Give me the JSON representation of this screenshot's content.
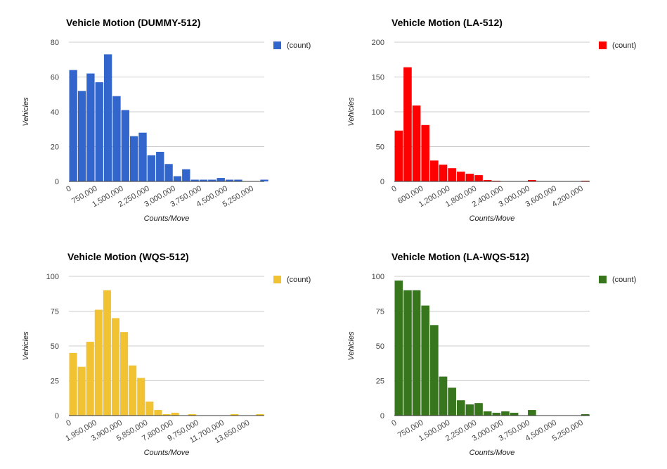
{
  "chart_data": [
    {
      "type": "bar",
      "title": "Vehicle Motion (DUMMY-512)",
      "xlabel": "Counts/Move",
      "ylabel": "Vehicles",
      "color": "#3366cc",
      "legend": {
        "position": "right",
        "entries": [
          "(count)"
        ]
      },
      "grid": true,
      "bin_width": 250000,
      "xlim": [
        0,
        5625000
      ],
      "ylim": [
        0,
        80
      ],
      "yticks": [
        0,
        20,
        40,
        60,
        80
      ],
      "xticks": [
        0,
        750000,
        1500000,
        2250000,
        3000000,
        3750000,
        4500000,
        5250000
      ],
      "xtick_labels": [
        "0",
        "750,000",
        "1,500,000",
        "2,250,000",
        "3,000,000",
        "3,750,000",
        "4,500,000",
        "5,250,000"
      ],
      "series": [
        {
          "values": [
            64,
            52,
            62,
            57,
            73,
            49,
            41,
            26,
            28,
            15,
            17,
            10,
            3,
            7,
            1,
            1,
            1,
            2,
            1,
            1,
            0,
            0,
            1
          ]
        }
      ]
    },
    {
      "type": "bar",
      "title": "Vehicle Motion (LA-512)",
      "xlabel": "Counts/Move",
      "ylabel": "Vehicles",
      "color": "#ff0000",
      "legend": {
        "position": "right",
        "entries": [
          "(count)"
        ]
      },
      "grid": true,
      "bin_width": 200000,
      "xlim": [
        0,
        4400000
      ],
      "ylim": [
        0,
        200
      ],
      "yticks": [
        0,
        50,
        100,
        150,
        200
      ],
      "xticks": [
        0,
        600000,
        1200000,
        1800000,
        2400000,
        3000000,
        3600000,
        4200000
      ],
      "xtick_labels": [
        "0",
        "600,000",
        "1,200,000",
        "1,800,000",
        "2,400,000",
        "3,000,000",
        "3,600,000",
        "4,200,000"
      ],
      "series": [
        {
          "values": [
            73,
            164,
            109,
            81,
            30,
            24,
            19,
            14,
            11,
            9,
            2,
            1,
            0,
            0,
            0,
            2,
            0,
            0,
            0,
            0,
            0,
            1
          ]
        }
      ]
    },
    {
      "type": "bar",
      "title": "Vehicle Motion (WQS-512)",
      "xlabel": "Counts/Move",
      "ylabel": "Vehicles",
      "color": "#f1c232",
      "legend": {
        "position": "right",
        "entries": [
          "(count)"
        ]
      },
      "grid": true,
      "bin_width": 650000,
      "xlim": [
        0,
        14950000
      ],
      "ylim": [
        0,
        100
      ],
      "yticks": [
        0,
        25,
        50,
        75,
        100
      ],
      "xticks": [
        0,
        1950000,
        3900000,
        5850000,
        7800000,
        9750000,
        11700000,
        13650000
      ],
      "xtick_labels": [
        "0",
        "1,950,000",
        "3,900,000",
        "5,850,000",
        "7,800,000",
        "9,750,000",
        "11,700,000",
        "13,650,000"
      ],
      "series": [
        {
          "values": [
            45,
            35,
            53,
            76,
            90,
            70,
            60,
            36,
            27,
            10,
            4,
            1,
            2,
            0,
            1,
            0,
            0,
            0,
            0,
            1,
            0,
            0,
            1
          ]
        }
      ]
    },
    {
      "type": "bar",
      "title": "Vehicle Motion (LA-WQS-512)",
      "xlabel": "Counts/Move",
      "ylabel": "Vehicles",
      "color": "#38761d",
      "legend": {
        "position": "right",
        "entries": [
          "(count)"
        ]
      },
      "grid": true,
      "bin_width": 250000,
      "xlim": [
        0,
        5500000
      ],
      "ylim": [
        0,
        100
      ],
      "yticks": [
        0,
        25,
        50,
        75,
        100
      ],
      "xticks": [
        0,
        750000,
        1500000,
        2250000,
        3000000,
        3750000,
        4500000,
        5250000
      ],
      "xtick_labels": [
        "0",
        "750,000",
        "1,500,000",
        "2,250,000",
        "3,000,000",
        "3,750,000",
        "4,500,000",
        "5,250,000"
      ],
      "series": [
        {
          "values": [
            97,
            90,
            90,
            79,
            65,
            28,
            20,
            11,
            8,
            9,
            3,
            2,
            3,
            2,
            0,
            4,
            0,
            0,
            0,
            0,
            0,
            1
          ]
        }
      ]
    }
  ]
}
